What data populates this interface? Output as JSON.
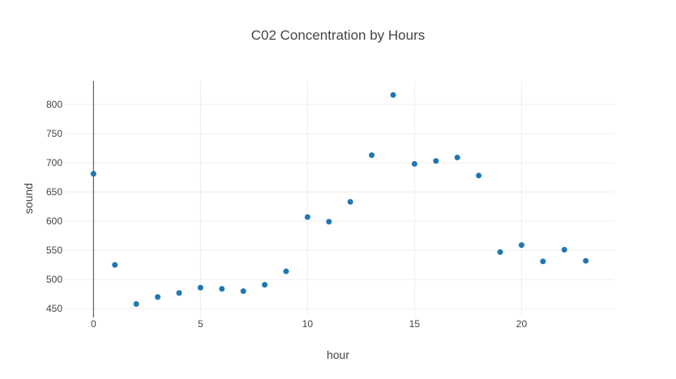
{
  "chart_data": {
    "type": "scatter",
    "title": "C02 Concentration by Hours",
    "xlabel": "hour",
    "ylabel": "sound",
    "xlim": [
      -1.3,
      24.3
    ],
    "ylim": [
      435,
      840
    ],
    "xticks": [
      0,
      5,
      10,
      15,
      20
    ],
    "yticks": [
      450,
      500,
      550,
      600,
      650,
      700,
      750,
      800
    ],
    "grid": true,
    "legend": "none",
    "marker_color": "#1f77b4",
    "series": [
      {
        "x": [
          0,
          1,
          2,
          3,
          4,
          5,
          6,
          7,
          8,
          9,
          10,
          11,
          12,
          13,
          14,
          15,
          16,
          17,
          18,
          19,
          20,
          21,
          22,
          23
        ],
        "y": [
          681,
          525,
          458,
          470,
          477,
          486,
          484,
          480,
          491,
          514,
          607,
          599,
          633,
          713,
          816,
          698,
          703,
          709,
          678,
          547,
          559,
          531,
          551,
          532
        ]
      }
    ]
  }
}
